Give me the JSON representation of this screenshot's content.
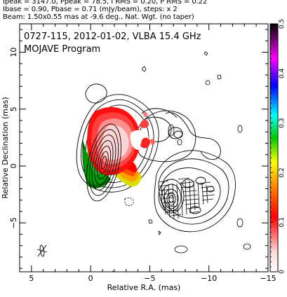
{
  "header": {
    "line1": "Ipeak = 3147.0, Ppeak = 78.5, I RMS = 0.20, P RMS = 0.22",
    "line2": "Ibase = 0.90, Pbase = 0.71 (mJy/beam), steps: x 2",
    "line3": "Beam: 1.50x0.55 mas at -9.6 deg., Nat. Wgt. (no taper)"
  },
  "chart_data": {
    "type": "heatmap",
    "title": "0727-115, 2012-01-02, VLBA 15.4 GHz",
    "subtitle": "MOJAVE Program",
    "xlabel": "Relative R.A. (mas)",
    "ylabel": "Relative Declination (mas)",
    "xlim": [
      6,
      -15
    ],
    "ylim": [
      -9.3,
      12.5
    ],
    "x_ticks": [
      5,
      0,
      -5,
      -10,
      -15
    ],
    "y_ticks": [
      10,
      5,
      0,
      -5
    ],
    "colorbar": {
      "min": 0,
      "max": 0.5,
      "ticks": [
        0,
        0.1,
        0.2,
        0.3,
        0.4,
        0.5
      ],
      "colors": [
        "#ffffff",
        "#ffd0d0",
        "#ff0000",
        "#ff8000",
        "#ffff00",
        "#00c000",
        "#00ffff",
        "#0000ff",
        "#ff00ff",
        "#000000"
      ]
    },
    "core": {
      "x": 0.3,
      "y": 0.1
    },
    "features": {
      "jet_component": {
        "x": -6.5,
        "y": -3.2
      }
    }
  }
}
